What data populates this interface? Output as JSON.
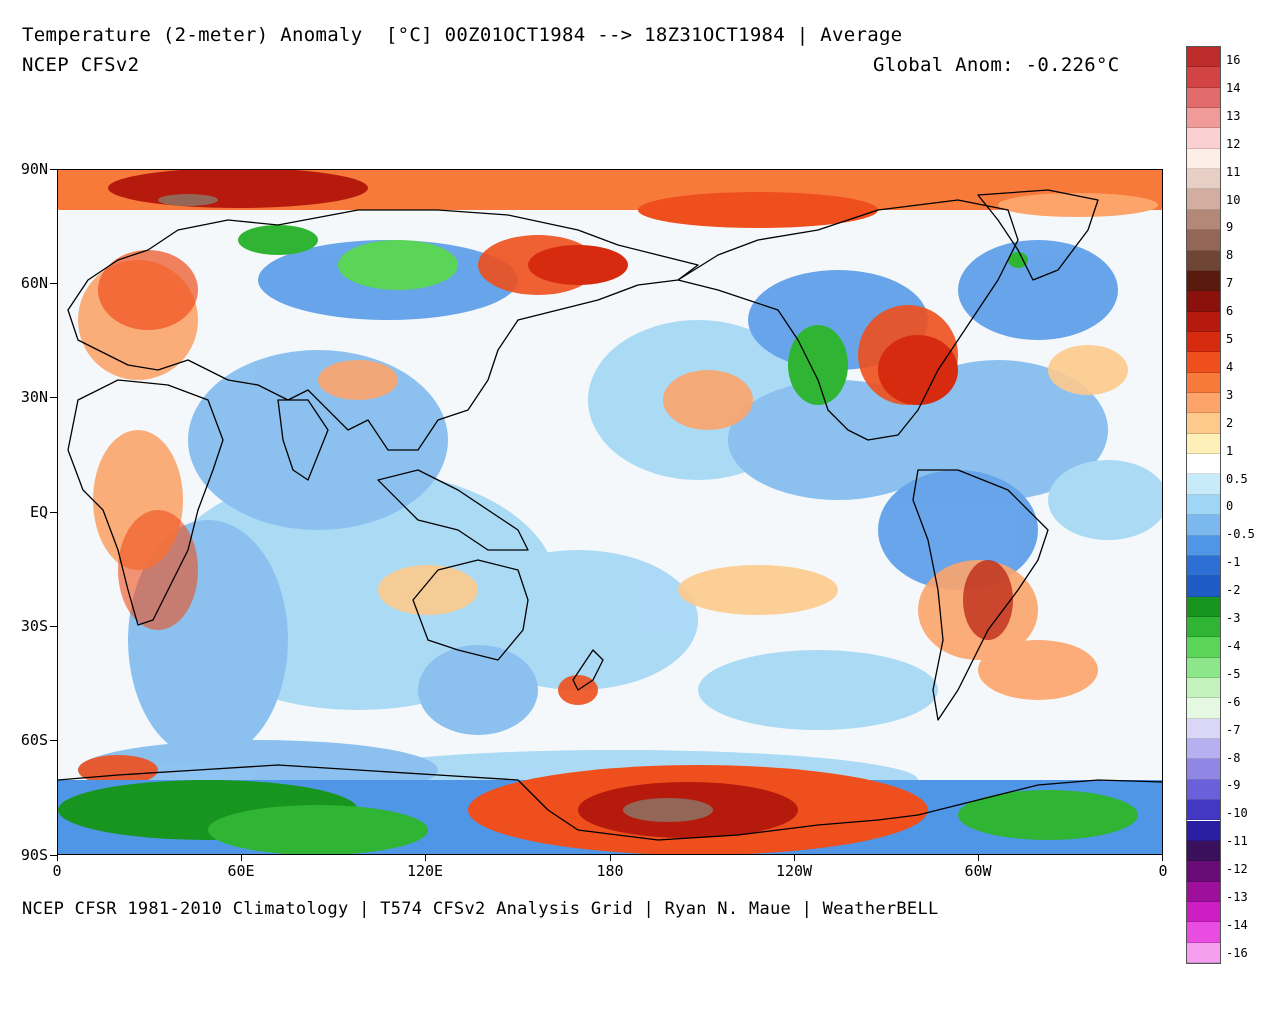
{
  "header": {
    "title": "Temperature (2-meter) Anomaly  [°C] 00Z01OCT1984 --> 18Z31OCT1984 | Average",
    "model": "NCEP CFSv2",
    "global_anom": "Global Anom: -0.226°C"
  },
  "footer": "NCEP CFSR 1981-2010 Climatology | T574 CFSv2 Analysis Grid | Ryan N. Maue | WeatherBELL",
  "map": {
    "lat_labels": [
      "90N",
      "60N",
      "30N",
      "EQ",
      "30S",
      "60S",
      "90S"
    ],
    "lon_labels": [
      "0",
      "60E",
      "120E",
      "180",
      "120W",
      "60W",
      "0"
    ],
    "colors": {
      "ocean_neutral": "#f4f8fb",
      "warm": "#ff8a50",
      "hot": "#d83a16",
      "extreme": "#7a1a10",
      "cool": "#8cc0f0",
      "cold": "#3d7ee0",
      "very_cold": "#18a030",
      "coast": "#000000"
    }
  },
  "colorbar": {
    "levels": [
      "16",
      "14",
      "13",
      "12",
      "11",
      "10",
      "9",
      "8",
      "7",
      "6",
      "5",
      "4",
      "3",
      "2",
      "1",
      "0.5",
      "0",
      "-0.5",
      "-1",
      "-2",
      "-3",
      "-4",
      "-5",
      "-6",
      "-7",
      "-8",
      "-9",
      "-10",
      "-11",
      "-12",
      "-13",
      "-14",
      "-16"
    ],
    "colors": [
      "#bd2b2b",
      "#d24343",
      "#e26b6b",
      "#f09a9a",
      "#fbd0d0",
      "#fdeee8",
      "#e8cfc6",
      "#d3ada0",
      "#b48878",
      "#936658",
      "#6f4636",
      "#5a1a0e",
      "#8b120c",
      "#b51a0d",
      "#d72b10",
      "#ee4f1c",
      "#f77a3a",
      "#fca46a",
      "#fdca8c",
      "#fef0b8",
      "#ffffff",
      "#c8ebfa",
      "#9fd5f5",
      "#7ab8ee",
      "#4f96e6",
      "#2e6fd6",
      "#1f5bc4",
      "#17951f",
      "#2fb533",
      "#5ad557",
      "#8ee68a",
      "#c3f2bd",
      "#e4f8e2",
      "#d9d6f8",
      "#b6b0f1",
      "#8f86e6",
      "#6a60d9",
      "#4338c4",
      "#2a1fa3",
      "#3a0f5c",
      "#6a0c78",
      "#9e0f9c",
      "#cc1ec2",
      "#e84ce0",
      "#f4a0ef"
    ]
  }
}
